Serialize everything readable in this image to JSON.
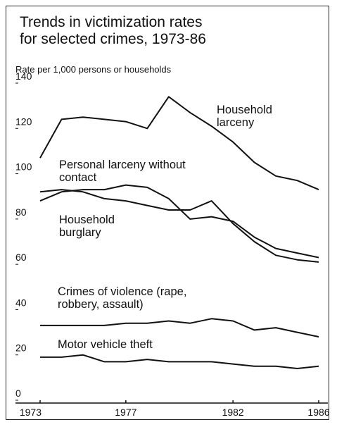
{
  "chart_data": {
    "type": "line",
    "title": "Trends in victimization rates for selected crimes, 1973-86",
    "y_label": "Rate per 1,000 persons or households",
    "x": [
      1973,
      1974,
      1975,
      1976,
      1977,
      1978,
      1979,
      1980,
      1981,
      1982,
      1983,
      1984,
      1985,
      1986
    ],
    "xlim": [
      1973,
      1986
    ],
    "xticks": [
      1973,
      1977,
      1982,
      1986
    ],
    "ylim": [
      0,
      140
    ],
    "yticks": [
      0,
      20,
      40,
      60,
      80,
      100,
      120,
      140
    ],
    "grid": false,
    "series": [
      {
        "name": "Household larceny",
        "color": "#111111",
        "values": [
          107,
          124,
          125,
          124,
          123,
          120,
          134,
          127,
          121,
          114,
          105,
          99,
          97,
          93
        ]
      },
      {
        "name": "Personal larceny without contact",
        "color": "#111111",
        "values": [
          88,
          92,
          93,
          93,
          95,
          94,
          89,
          80,
          81,
          79,
          72,
          67,
          65,
          63
        ]
      },
      {
        "name": "Household burglary",
        "color": "#111111",
        "values": [
          92,
          93,
          92,
          89,
          88,
          86,
          84,
          84,
          88,
          78,
          70,
          64,
          62,
          61
        ]
      },
      {
        "name": "Crimes of violence (rape, robbery, assault)",
        "color": "#111111",
        "values": [
          33,
          33,
          33,
          33,
          34,
          34,
          35,
          34,
          36,
          35,
          31,
          32,
          30,
          28
        ]
      },
      {
        "name": "Motor vehicle theft",
        "color": "#111111",
        "values": [
          19,
          19,
          20,
          17,
          17,
          18,
          17,
          17,
          17,
          16,
          15,
          15,
          14,
          15
        ]
      }
    ]
  }
}
